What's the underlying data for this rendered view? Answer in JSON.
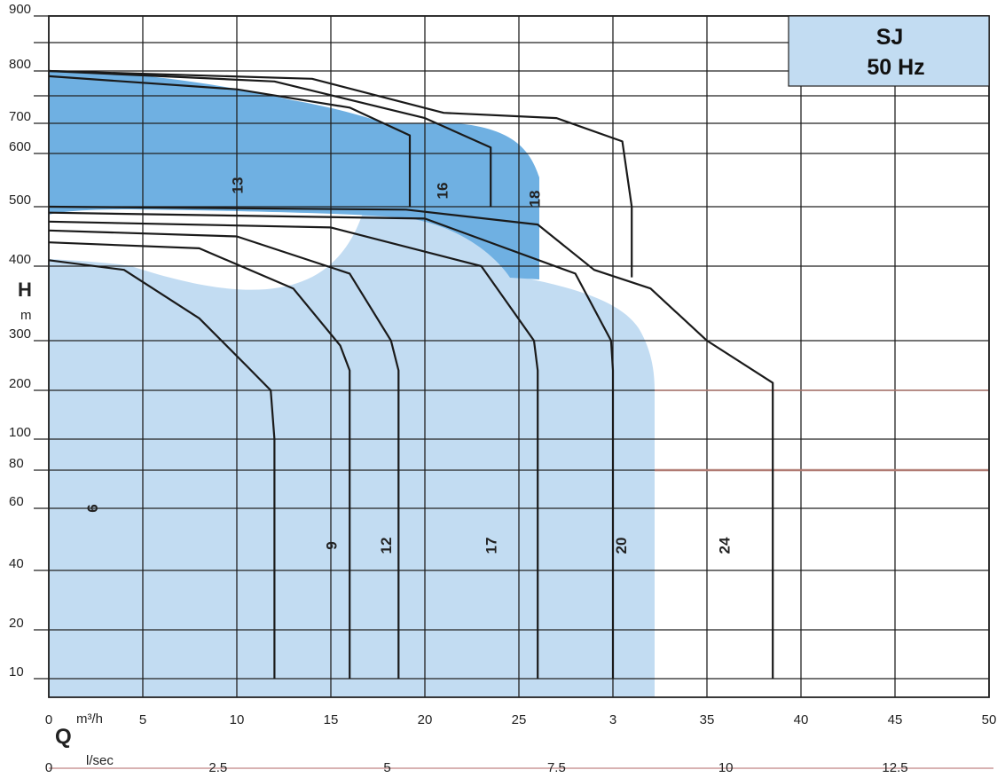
{
  "chart_data": {
    "type": "area",
    "title": "SJ",
    "subtitle": "50 Hz",
    "ylabel": "H",
    "yunit": "m",
    "xlabel": "Q",
    "xunit": "m³/h",
    "x2unit": "l/sec",
    "xlim": [
      0,
      50
    ],
    "x_ticks": [
      "0",
      "5",
      "10",
      "15",
      "20",
      "25",
      "3",
      "35",
      "40",
      "45",
      "50"
    ],
    "x2_ticks": [
      "0",
      "2.5",
      "5",
      "7.5",
      "10",
      "12.5"
    ],
    "y_ticks": [
      "10",
      "20",
      "40",
      "60",
      "80",
      "100",
      "200",
      "300",
      "400",
      "500",
      "600",
      "700",
      "800",
      "900"
    ],
    "series": [
      {
        "name": "6",
        "points": [
          [
            0,
            410
          ],
          [
            4,
            395
          ],
          [
            8,
            330
          ],
          [
            10.5,
            250
          ],
          [
            11.8,
            200
          ],
          [
            12,
            100
          ],
          [
            12,
            10
          ]
        ]
      },
      {
        "name": "9",
        "points": [
          [
            0,
            440
          ],
          [
            8,
            430
          ],
          [
            13,
            370
          ],
          [
            15.5,
            290
          ],
          [
            16,
            240
          ],
          [
            16,
            100
          ],
          [
            16,
            10
          ]
        ]
      },
      {
        "name": "12",
        "points": [
          [
            0,
            460
          ],
          [
            10,
            450
          ],
          [
            16,
            390
          ],
          [
            18.2,
            300
          ],
          [
            18.6,
            240
          ],
          [
            18.6,
            100
          ],
          [
            18.6,
            10
          ]
        ]
      },
      {
        "name": "17",
        "points": [
          [
            0,
            475
          ],
          [
            15,
            465
          ],
          [
            23,
            400
          ],
          [
            25.8,
            300
          ],
          [
            26,
            240
          ],
          [
            26,
            100
          ],
          [
            26,
            10
          ]
        ]
      },
      {
        "name": "20",
        "points": [
          [
            0,
            490
          ],
          [
            20,
            480
          ],
          [
            28,
            390
          ],
          [
            29.9,
            300
          ],
          [
            30,
            240
          ],
          [
            30,
            100
          ],
          [
            30,
            10
          ]
        ]
      },
      {
        "name": "24",
        "points": [
          [
            0,
            500
          ],
          [
            19,
            495
          ],
          [
            26,
            470
          ],
          [
            29,
            395
          ],
          [
            32,
            370
          ],
          [
            35,
            300
          ],
          [
            38.5,
            215
          ],
          [
            38.5,
            100
          ],
          [
            38.5,
            10
          ]
        ]
      },
      {
        "name": "13",
        "points": [
          [
            0,
            790
          ],
          [
            10,
            765
          ],
          [
            16,
            730
          ],
          [
            19.2,
            660
          ],
          [
            19.2,
            500
          ]
        ]
      },
      {
        "name": "16",
        "points": [
          [
            0,
            800
          ],
          [
            12,
            780
          ],
          [
            20,
            710
          ],
          [
            23.5,
            620
          ],
          [
            23.5,
            500
          ]
        ]
      },
      {
        "name": "18",
        "points": [
          [
            0,
            800
          ],
          [
            14,
            785
          ],
          [
            21,
            720
          ],
          [
            27,
            710
          ],
          [
            30.5,
            640
          ],
          [
            31,
            500
          ],
          [
            31,
            385
          ]
        ]
      }
    ]
  }
}
